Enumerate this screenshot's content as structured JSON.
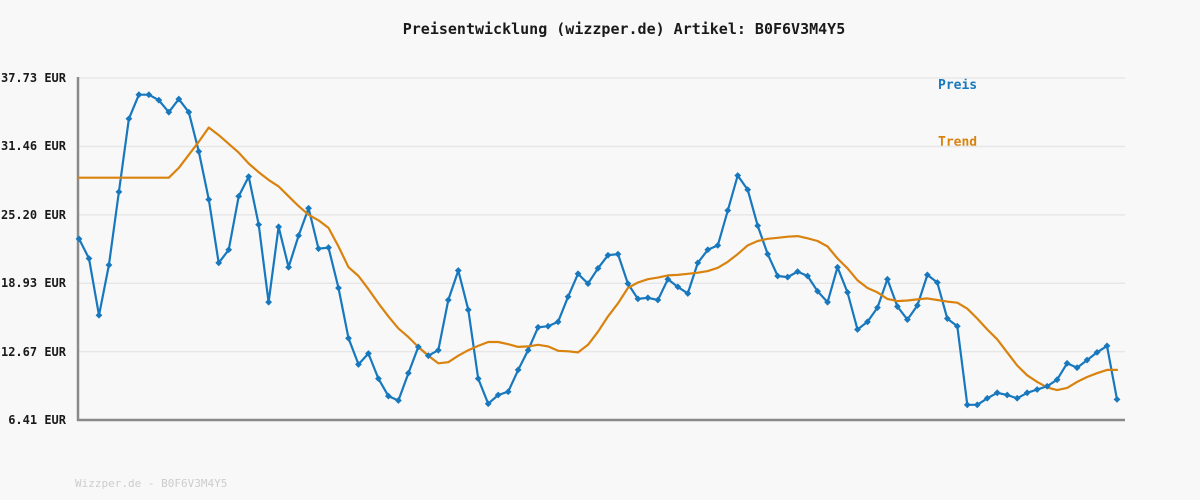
{
  "footer": "Wizzper.de - B0F6V3M4Y5",
  "colors": {
    "preis": "#1878be",
    "trend": "#d9820e",
    "grid": "#e7e7e7",
    "axis": "#8a8a8a",
    "text": "#1a1a1a",
    "footer_text": "#cccccc",
    "background": "#f8f8f8"
  },
  "chart_data": {
    "type": "line",
    "title": "Preisentwicklung (wizzper.de) Artikel: B0F6V3M4Y5",
    "grid": true,
    "legend_position": "top-right",
    "x_axis": {
      "labels_visible": false
    },
    "y_axis": {
      "unit": "EUR",
      "min": 6.41,
      "max": 37.73,
      "ticks": [
        {
          "value": 37.73,
          "label": "37.73 EUR"
        },
        {
          "value": 31.46,
          "label": "31.46 EUR"
        },
        {
          "value": 25.2,
          "label": "25.20 EUR"
        },
        {
          "value": 18.93,
          "label": "18.93 EUR"
        },
        {
          "value": 12.67,
          "label": "12.67 EUR"
        },
        {
          "value": 6.41,
          "label": "6.41 EUR"
        }
      ]
    },
    "series": [
      {
        "name": "Preis",
        "marker": "diamond",
        "values": [
          23.0,
          21.2,
          16.0,
          20.6,
          27.3,
          34.0,
          36.2,
          36.2,
          35.7,
          34.6,
          35.8,
          34.6,
          31.0,
          26.6,
          20.8,
          22.0,
          26.9,
          28.7,
          24.3,
          17.2,
          24.1,
          20.4,
          23.3,
          25.8,
          22.1,
          22.2,
          18.5,
          13.9,
          11.5,
          12.5,
          10.2,
          8.6,
          8.2,
          10.7,
          13.1,
          12.3,
          12.8,
          17.4,
          20.1,
          16.5,
          10.2,
          7.9,
          8.7,
          9.0,
          11.0,
          12.8,
          14.9,
          15.0,
          15.4,
          17.7,
          19.8,
          18.9,
          20.3,
          21.5,
          21.6,
          18.9,
          17.5,
          17.6,
          17.4,
          19.3,
          18.6,
          18.0,
          20.8,
          22.0,
          22.4,
          25.6,
          28.8,
          27.5,
          24.2,
          21.6,
          19.6,
          19.5,
          20.0,
          19.6,
          18.2,
          17.2,
          20.4,
          18.1,
          14.7,
          15.4,
          16.7,
          19.3,
          16.8,
          15.6,
          16.9,
          19.7,
          19.0,
          15.7,
          15.0,
          7.8,
          7.8,
          8.4,
          8.9,
          8.7,
          8.4,
          8.9,
          9.2,
          9.5,
          10.1,
          11.6,
          11.2,
          11.9,
          12.6,
          13.2,
          8.3
        ]
      },
      {
        "name": "Trend",
        "marker": "none",
        "values": [
          28.6,
          28.6,
          28.6,
          28.6,
          28.6,
          28.6,
          28.6,
          28.6,
          28.6,
          28.6,
          29.5,
          30.7,
          31.9,
          33.2,
          32.5,
          31.7,
          30.9,
          29.9,
          29.1,
          28.4,
          27.8,
          26.9,
          26.0,
          25.2,
          24.7,
          24.0,
          22.3,
          20.4,
          19.6,
          18.4,
          17.1,
          15.9,
          14.8,
          14.0,
          13.1,
          12.3,
          11.6,
          11.7,
          12.3,
          12.8,
          13.2,
          13.55,
          13.55,
          13.35,
          13.1,
          13.15,
          13.3,
          13.15,
          12.75,
          12.7,
          12.6,
          13.3,
          14.5,
          15.9,
          17.1,
          18.5,
          19.0,
          19.3,
          19.45,
          19.65,
          19.7,
          19.8,
          19.9,
          20.05,
          20.35,
          20.9,
          21.6,
          22.4,
          22.8,
          23.0,
          23.1,
          23.2,
          23.25,
          23.05,
          22.8,
          22.3,
          21.2,
          20.3,
          19.2,
          18.5,
          18.1,
          17.5,
          17.3,
          17.35,
          17.45,
          17.55,
          17.4,
          17.25,
          17.15,
          16.6,
          15.7,
          14.7,
          13.8,
          12.6,
          11.4,
          10.5,
          9.9,
          9.4,
          9.15,
          9.35,
          9.9,
          10.35,
          10.7,
          11.0,
          11.0
        ]
      }
    ]
  }
}
